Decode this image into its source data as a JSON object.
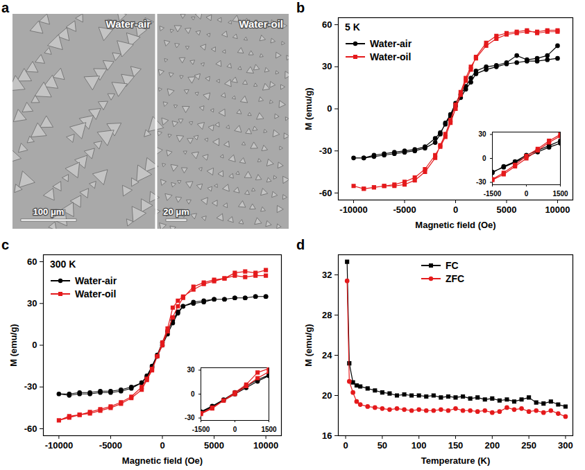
{
  "image_panel": {
    "panel_label": "a",
    "left_label": "Water-air",
    "right_label": "Water-oil",
    "left_scale_bar": "100 μm",
    "right_scale_bar": "20 μm"
  },
  "chart_data": [
    {
      "type": "line",
      "panel_label": "b",
      "annotations": [
        "5 K"
      ],
      "x_label": "Magnetic field (Oe)",
      "y_label": "M (emu/g)",
      "xlim": [
        -11500,
        11500
      ],
      "xticks": [
        -10000,
        -5000,
        0,
        5000,
        10000
      ],
      "ylim": [
        -65,
        65
      ],
      "yticks": [
        -60,
        -30,
        0,
        30,
        60
      ],
      "grid": false,
      "legend": "top-left",
      "x": [
        10000,
        9000,
        8000,
        7000,
        6000,
        5000,
        4000,
        3000,
        2000,
        1500,
        1000,
        500,
        0,
        -500,
        -1000,
        -1500,
        -2000,
        -3000,
        -4000,
        -5000,
        -6000,
        -7000,
        -8000,
        -9000,
        -10000,
        -9000,
        -8000,
        -7000,
        -6000,
        -5000,
        -4000,
        -3000,
        -2000,
        -1500,
        -1000,
        -500,
        0,
        500,
        1000,
        1500,
        2000,
        3000,
        4000,
        5000,
        6000,
        7000,
        8000,
        9000,
        10000
      ],
      "series": [
        {
          "name": "Water-air",
          "color": "#000000",
          "marker": "circle",
          "values": [
            45,
            38,
            36,
            35,
            38,
            33,
            31,
            30,
            27,
            22,
            16,
            10,
            4,
            -4,
            -10,
            -18,
            -24,
            -28,
            -30,
            -31,
            -32,
            -33,
            -34,
            -35,
            -35,
            -35,
            -33,
            -32,
            -31,
            -30,
            -29,
            -27,
            -21,
            -17,
            -11,
            -5,
            2,
            8,
            14,
            19,
            25,
            28,
            30,
            32,
            33,
            34,
            34,
            35,
            36
          ]
        },
        {
          "name": "Water-oil",
          "color": "#e41a1c",
          "marker": "square",
          "values": [
            56,
            56,
            55,
            55,
            54,
            53,
            50,
            45,
            36,
            30,
            22,
            12,
            3,
            -8,
            -18,
            -26,
            -35,
            -45,
            -51,
            -54,
            -55,
            -55,
            -56,
            -57,
            -55,
            -57,
            -56,
            -55,
            -54,
            -52,
            -49,
            -43,
            -33,
            -27,
            -20,
            -10,
            0,
            10,
            20,
            28,
            37,
            47,
            52,
            54,
            55,
            56,
            54,
            55,
            55
          ]
        }
      ],
      "inset": {
        "xlim": [
          -1500,
          1500
        ],
        "xticks": [
          -1500,
          0,
          1500
        ],
        "ylim": [
          -33,
          33
        ],
        "yticks": [
          -30,
          0,
          30
        ]
      }
    },
    {
      "type": "line",
      "panel_label": "c",
      "annotations": [
        "300 K"
      ],
      "x_label": "Magnetic field (Oe)",
      "y_label": "M (emu/g)",
      "xlim": [
        -11500,
        11500
      ],
      "xticks": [
        -10000,
        -5000,
        0,
        5000,
        10000
      ],
      "ylim": [
        -65,
        65
      ],
      "yticks": [
        -60,
        -30,
        0,
        30,
        60
      ],
      "grid": false,
      "legend": "top-left",
      "x": [
        10000,
        9000,
        8000,
        7000,
        6000,
        5000,
        4000,
        3000,
        2000,
        1500,
        1000,
        500,
        0,
        -500,
        -1000,
        -1500,
        -2000,
        -3000,
        -4000,
        -5000,
        -6000,
        -7000,
        -8000,
        -9000,
        -10000,
        -9000,
        -8000,
        -7000,
        -6000,
        -5000,
        -4000,
        -3000,
        -2000,
        -1500,
        -1000,
        -500,
        0,
        500,
        1000,
        1500,
        2000,
        3000,
        4000,
        5000,
        6000,
        7000,
        8000,
        9000,
        10000
      ],
      "series": [
        {
          "name": "Water-air",
          "color": "#000000",
          "marker": "circle",
          "values": [
            35,
            35,
            34,
            34,
            33,
            33,
            32,
            31,
            28,
            24,
            18,
            10,
            2,
            -7,
            -15,
            -22,
            -27,
            -31,
            -33,
            -34,
            -34,
            -35,
            -35,
            -36,
            -35,
            -35,
            -34,
            -34,
            -33,
            -33,
            -32,
            -30,
            -27,
            -23,
            -16,
            -8,
            0,
            8,
            16,
            23,
            28,
            30,
            31,
            33,
            33,
            34,
            34,
            35,
            35
          ]
        },
        {
          "name": "Water-oil",
          "color": "#e41a1c",
          "marker": "square",
          "values": [
            54,
            52,
            53,
            52,
            48,
            46,
            44,
            40,
            35,
            32,
            27,
            12,
            2,
            -8,
            -18,
            -25,
            -32,
            -38,
            -42,
            -45,
            -47,
            -49,
            -50,
            -51,
            -54,
            -52,
            -50,
            -48,
            -46,
            -44,
            -41,
            -37,
            -30,
            -24,
            -17,
            -8,
            0,
            10,
            20,
            28,
            34,
            42,
            45,
            47,
            48,
            50,
            49,
            50,
            50
          ]
        }
      ],
      "inset": {
        "xlim": [
          -1500,
          1500
        ],
        "xticks": [
          -1500,
          0,
          1500
        ],
        "ylim": [
          -33,
          33
        ],
        "yticks": [
          -30,
          0,
          30
        ]
      }
    },
    {
      "type": "line",
      "panel_label": "d",
      "x_label": "Temperature (K)",
      "y_label": "M (emu/g)",
      "xlim": [
        -10,
        310
      ],
      "xticks": [
        0,
        50,
        100,
        150,
        200,
        250,
        300
      ],
      "ylim": [
        16,
        34
      ],
      "yticks": [
        16,
        20,
        24,
        28,
        32
      ],
      "grid": false,
      "legend": "top",
      "x": [
        2,
        5,
        10,
        15,
        20,
        30,
        40,
        50,
        60,
        70,
        80,
        90,
        100,
        110,
        120,
        130,
        140,
        150,
        160,
        170,
        180,
        190,
        200,
        210,
        220,
        230,
        240,
        250,
        260,
        270,
        280,
        290,
        300
      ],
      "series": [
        {
          "name": "FC",
          "color": "#000000",
          "marker": "square",
          "values": [
            33.3,
            23.2,
            21.3,
            21.0,
            20.9,
            20.7,
            20.5,
            20.3,
            20.2,
            20.0,
            20.1,
            20.0,
            20.0,
            19.9,
            20.0,
            19.8,
            19.9,
            19.8,
            19.9,
            19.7,
            19.8,
            19.6,
            19.7,
            19.5,
            19.6,
            19.4,
            19.6,
            19.8,
            19.3,
            19.2,
            19.4,
            19.1,
            18.9
          ]
        },
        {
          "name": "ZFC",
          "color": "#e41a1c",
          "marker": "circle",
          "values": [
            31.4,
            21.4,
            20.3,
            19.4,
            19.1,
            18.9,
            18.8,
            18.7,
            18.6,
            18.7,
            18.6,
            18.5,
            18.6,
            18.5,
            18.5,
            18.6,
            18.5,
            18.7,
            18.5,
            18.5,
            18.4,
            18.5,
            18.3,
            18.4,
            18.8,
            18.6,
            18.7,
            18.4,
            18.5,
            18.3,
            18.5,
            18.2,
            17.9
          ]
        }
      ]
    }
  ]
}
